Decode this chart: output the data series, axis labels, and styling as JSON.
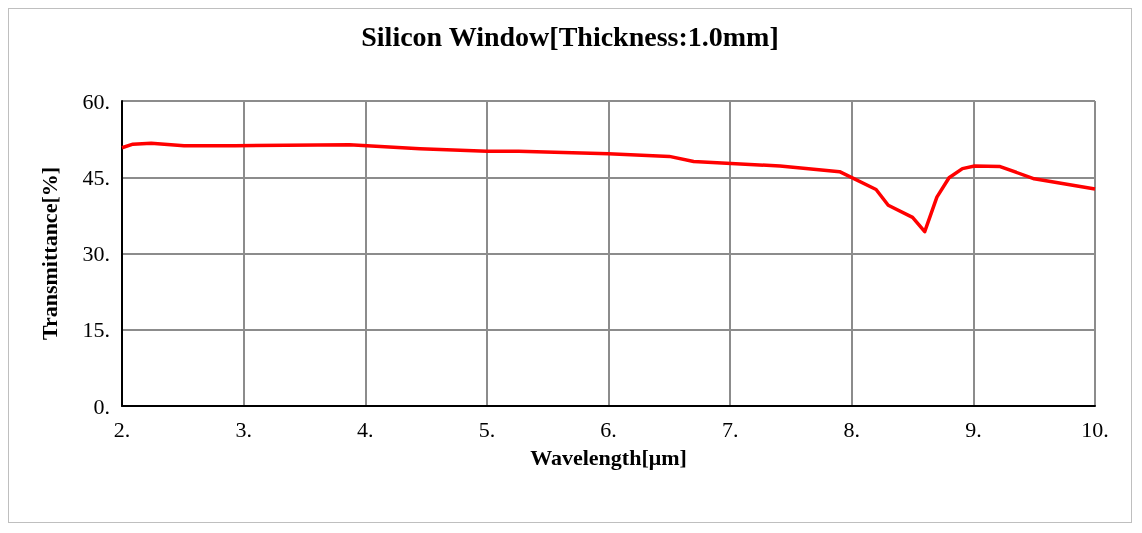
{
  "chart_data": {
    "type": "line",
    "title": "Silicon Window[Thickness:1.0mm]",
    "xlabel": "Wavelength[μm]",
    "ylabel": "Transmittance[%]",
    "x": [
      2.0,
      2.09,
      2.24,
      2.51,
      2.93,
      3.87,
      4.45,
      5.0,
      5.26,
      6.0,
      6.5,
      6.7,
      7.41,
      7.9,
      8.2,
      8.3,
      8.5,
      8.6,
      8.7,
      8.8,
      8.91,
      9.01,
      9.22,
      9.5,
      10.0
    ],
    "series": [
      {
        "color": "#ff0000",
        "values": [
          50.8,
          51.5,
          51.7,
          51.2,
          51.2,
          51.4,
          50.6,
          50.1,
          50.1,
          49.6,
          49.1,
          48.1,
          47.2,
          46.1,
          42.6,
          39.5,
          37.1,
          34.3,
          41.1,
          44.9,
          46.7,
          47.2,
          47.1,
          44.7,
          42.7
        ]
      }
    ],
    "xlim": [
      2,
      10
    ],
    "xticks": [
      {
        "value": 2,
        "label": "2."
      },
      {
        "value": 3,
        "label": "3."
      },
      {
        "value": 4,
        "label": "4."
      },
      {
        "value": 5,
        "label": "5."
      },
      {
        "value": 6,
        "label": "6."
      },
      {
        "value": 7,
        "label": "7."
      },
      {
        "value": 8,
        "label": "8."
      },
      {
        "value": 9,
        "label": "9."
      },
      {
        "value": 10,
        "label": "10."
      }
    ],
    "ylim": [
      0,
      60
    ],
    "yticks": [
      {
        "value": 0,
        "label": "0."
      },
      {
        "value": 15,
        "label": "15."
      },
      {
        "value": 30,
        "label": "30."
      },
      {
        "value": 45,
        "label": "45."
      },
      {
        "value": 60,
        "label": "60."
      }
    ],
    "grid": true,
    "marker": "none",
    "line_style": "solid"
  }
}
